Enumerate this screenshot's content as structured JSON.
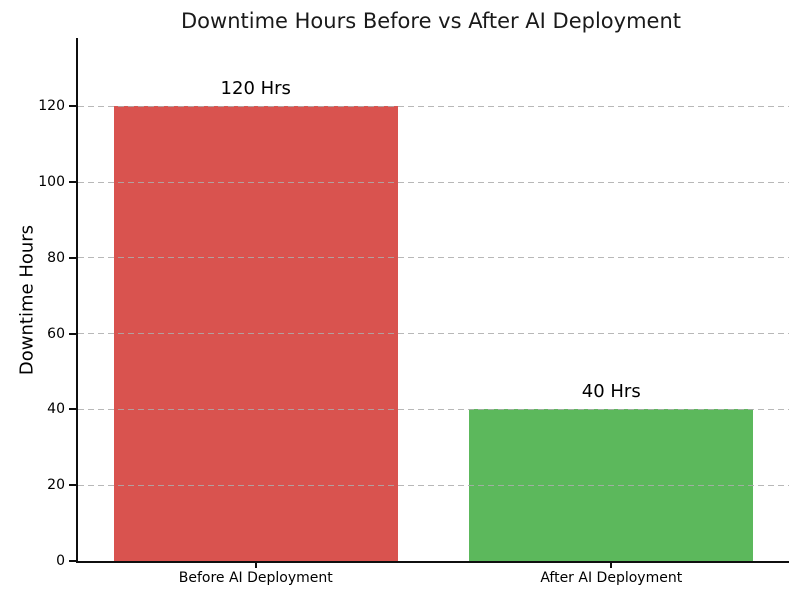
{
  "chart_data": {
    "type": "bar",
    "title": "Downtime Hours Before vs After AI Deployment",
    "xlabel": "",
    "ylabel": "Downtime Hours",
    "categories": [
      "Before AI Deployment",
      "After AI Deployment"
    ],
    "values": [
      120,
      40
    ],
    "bar_labels": [
      "120 Hrs",
      "40 Hrs"
    ],
    "bar_colors": [
      "#d9534f",
      "#5cb85c"
    ],
    "yticks": [
      0,
      20,
      40,
      60,
      80,
      100,
      120
    ],
    "ylim": [
      0,
      138
    ],
    "grid": "horizontal-dashed",
    "grid_color": "#acacac",
    "legend": "none",
    "background": "#ffffff",
    "text_color": "#000000"
  }
}
